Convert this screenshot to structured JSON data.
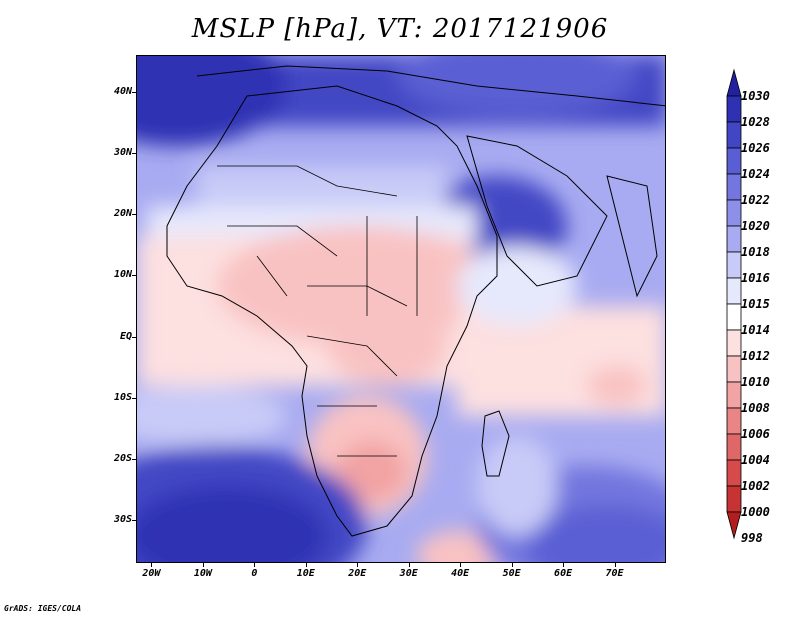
{
  "title": "MSLP [hPa], VT: 2017121906",
  "footer": "GrADS: IGES/COLA",
  "map": {
    "lon_range": [
      -23,
      80
    ],
    "lat_range": [
      -37,
      46
    ],
    "lat_ticks": [
      {
        "value": 40,
        "label": "40N"
      },
      {
        "value": 30,
        "label": "30N"
      },
      {
        "value": 20,
        "label": "20N"
      },
      {
        "value": 10,
        "label": "10N"
      },
      {
        "value": 0,
        "label": "EQ"
      },
      {
        "value": -10,
        "label": "10S"
      },
      {
        "value": -20,
        "label": "20S"
      },
      {
        "value": -30,
        "label": "30S"
      }
    ],
    "lon_ticks": [
      {
        "value": -20,
        "label": "20W"
      },
      {
        "value": -10,
        "label": "10W"
      },
      {
        "value": 0,
        "label": "0"
      },
      {
        "value": 10,
        "label": "10E"
      },
      {
        "value": 20,
        "label": "20E"
      },
      {
        "value": 30,
        "label": "30E"
      },
      {
        "value": 40,
        "label": "40E"
      },
      {
        "value": 50,
        "label": "50E"
      },
      {
        "value": 60,
        "label": "60E"
      },
      {
        "value": 70,
        "label": "70E"
      }
    ]
  },
  "colorbar": {
    "levels": [
      "1030",
      "1028",
      "1026",
      "1024",
      "1022",
      "1020",
      "1018",
      "1016",
      "1015",
      "1014",
      "1012",
      "1010",
      "1008",
      "1006",
      "1004",
      "1002",
      "1000",
      "998"
    ],
    "colors": [
      "#2222a0",
      "#2f31b3",
      "#4346c4",
      "#5a5ed3",
      "#7276de",
      "#8c90e8",
      "#a8abf1",
      "#c8cbf7",
      "#e6e8fc",
      "#ffffff",
      "#fde0e0",
      "#f9c2c2",
      "#f2a3a3",
      "#e98585",
      "#e06767",
      "#d54a4a",
      "#c73232",
      "#b21e1e"
    ]
  }
}
